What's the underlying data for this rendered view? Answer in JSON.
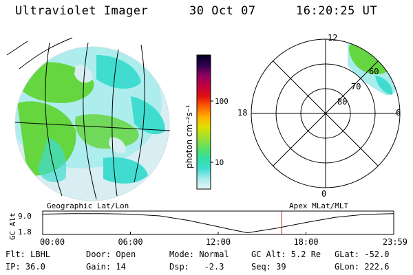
{
  "header": {
    "title": "Ultraviolet Imager",
    "date": "30 Oct 07",
    "time": "16:20:25 UT"
  },
  "colorbar": {
    "label": "photon cm⁻²s⁻¹",
    "ticks": [
      "100",
      "10"
    ],
    "stops": [
      "#e8f4f8",
      "#a8ecec",
      "#40dcd0",
      "#30e0a0",
      "#60e060",
      "#a0e030",
      "#e0e000",
      "#ffb000",
      "#ff6000",
      "#e01010",
      "#c00040",
      "#900060",
      "#300050",
      "#000020"
    ]
  },
  "polar_plot": {
    "mlt_labels": [
      "12",
      "18",
      "6",
      "0"
    ],
    "lat_labels": [
      "60",
      "70",
      "80"
    ]
  },
  "captions": {
    "left": "Geographic Lat/Lon",
    "right": "Apex MLat/MLT"
  },
  "chart_data": {
    "type": "line",
    "title": "",
    "ylabel": "GC Alt",
    "yticks": [
      "9.0",
      "1.8"
    ],
    "ylim": [
      1.8,
      9.0
    ],
    "xticks": [
      "00:00",
      "06:00",
      "12:00",
      "18:00",
      "23:59"
    ],
    "xlim": [
      0,
      24
    ],
    "series": [
      {
        "name": "GC Alt",
        "x": [
          0,
          2,
          4,
          6,
          8,
          10,
          12,
          13,
          14,
          15,
          16,
          18,
          20,
          22,
          24
        ],
        "y": [
          8.4,
          8.6,
          8.6,
          8.4,
          7.8,
          6.2,
          4.0,
          2.9,
          1.9,
          2.7,
          3.5,
          5.5,
          7.3,
          8.3,
          8.6
        ]
      }
    ],
    "current_time_marker": 16.34
  },
  "status": {
    "flt": "Flt: LBHL",
    "door": "Door: Open",
    "mode": "Mode: Normal",
    "gc_alt": "GC Alt: 5.2 Re",
    "glat": "GLat: -52.0",
    "ip": "IP: 36.0",
    "gain": "Gain: 14",
    "dsp": "Dsp:   -2.3",
    "seq": "Seq: 39",
    "glon": "GLon: 222.6"
  },
  "colors": {
    "green": "#66d640",
    "cyan": "#40dcd0",
    "light": "#d8eef2",
    "marker": "#c02020"
  }
}
